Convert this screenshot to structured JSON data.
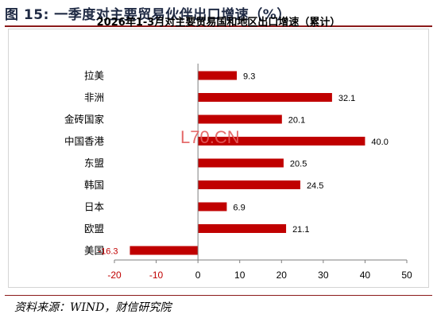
{
  "figure": {
    "title": "图 15: 一季度对主要贸易伙伴出口增速（%）",
    "source": "资料来源：WIND，财信研究院",
    "watermark": "L70.CN"
  },
  "colors": {
    "bar": "#c00000",
    "negative_label": "#c00000",
    "axis_text": "#000000",
    "rule": "#8b1a1a"
  },
  "chart_data": {
    "type": "bar",
    "orientation": "horizontal",
    "title": "2026年1-3月对主要贸易国和地区出口增速（累计）",
    "categories": [
      "拉美",
      "非洲",
      "金砖国家",
      "中国香港",
      "东盟",
      "韩国",
      "日本",
      "欧盟",
      "美国"
    ],
    "values": [
      9.3,
      32.1,
      20.1,
      40.0,
      20.5,
      24.5,
      6.9,
      21.1,
      -16.3
    ],
    "value_labels": [
      "9.3",
      "32.1",
      "20.1",
      "40.0",
      "20.5",
      "24.5",
      "6.9",
      "21.1",
      "-16.3"
    ],
    "xlim": [
      -20,
      50
    ],
    "xticks": [
      -20,
      -10,
      0,
      10,
      20,
      30,
      40,
      50
    ],
    "grid": false,
    "legend": "none"
  }
}
